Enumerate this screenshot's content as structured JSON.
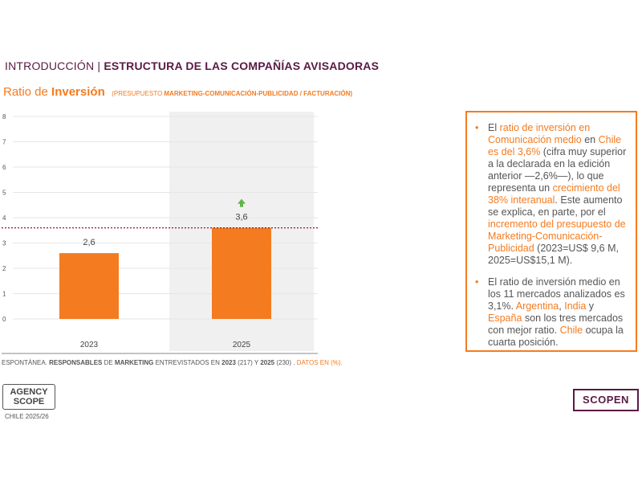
{
  "header": {
    "part1": "INTRODUCCIÓN | ",
    "part2": "ESTRUCTURA DE LAS COMPAÑÍAS AVISADORAS"
  },
  "subtitle": {
    "w1": "Ratio de ",
    "w2": "Inversión",
    "note_a": "(PRESUPUESTO ",
    "note_b": "MARKETING-COMUNICACIÓN-PUBLICIDAD / FACTURACIÓN)"
  },
  "chart_data": {
    "type": "bar",
    "categories": [
      "2023",
      "2025"
    ],
    "values": [
      2.6,
      3.6
    ],
    "value_labels": [
      "2,6",
      "3,6"
    ],
    "ylim": [
      0,
      8
    ],
    "yticks": [
      0,
      1,
      2,
      3,
      4,
      5,
      6,
      7,
      8
    ],
    "reference_line": 3.6,
    "highlight_category": "2025",
    "increase_arrow_on": "2025",
    "grid": true,
    "colors": {
      "bar": "#f47b20",
      "highlight_bg": "#f0f0f0",
      "reference_line": "#8b1a4a",
      "arrow": "#5fb548",
      "grid": "#e6e6e6"
    }
  },
  "footnote": {
    "t1": "ESPONTÁNEA. ",
    "t2": "RESPONSABLES",
    "t3": " DE ",
    "t4": "MARKETING",
    "t5": " ENTREVISTADOS EN ",
    "t6": "2023",
    "t7": " (217) Y ",
    "t8": "2025",
    "t9": " (230) . ",
    "t10": "DATOS EN (%)."
  },
  "textbox": {
    "bullet_symbol": "•",
    "p1": {
      "a": "El ",
      "b": "ratio de inversión en Comunicación medio",
      "c": " en ",
      "d": "Chile es del 3,6%",
      "e": " (cifra muy superior a la declarada en la edición anterior —2,6%—), lo que representa un ",
      "f": "crecimiento del 38% interanual",
      "g": ". Este aumento se explica, en parte, por el ",
      "h": "incremento del presupuesto de Marketing-Comunicación-Publicidad",
      "i": " (2023=US$ 9,6 M, 2025=US$15,1 M)."
    },
    "p2": {
      "a": "El ratio de inversión medio en los 11 mercados analizados es 3,1%. ",
      "b": "Argentina",
      "c": ", ",
      "d": "India",
      "e": " y ",
      "f": "España",
      "g": " son los tres mercados con mejor ratio. ",
      "h": "Chile",
      "i": " ocupa la cuarta posición."
    }
  },
  "logos": {
    "agency_line1": "AGENCY",
    "agency_line2": "SCOPE",
    "agency_sub": "CHILE 2025/26",
    "scopen": "SCOPEN"
  }
}
